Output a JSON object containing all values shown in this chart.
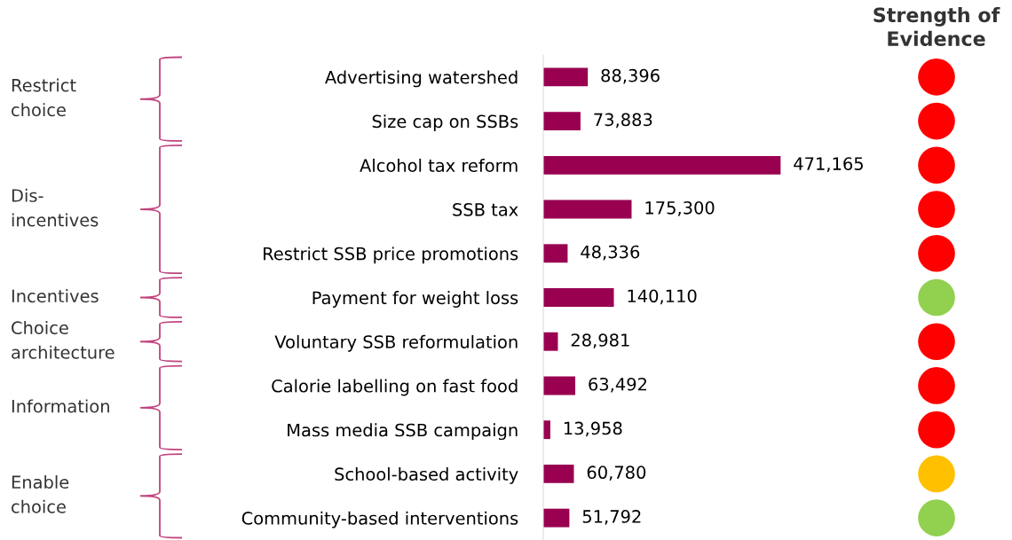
{
  "chart_data": [
    {
      "type": "bar",
      "orientation": "horizontal",
      "color": "#990050",
      "categories": [
        "Advertising watershed",
        "Size cap on SSBs",
        "Alcohol tax reform",
        "SSB tax",
        "Restrict SSB price promotions",
        "Payment for weight loss",
        "Voluntary SSB reformulation",
        "Calorie labelling on fast food",
        "Mass media SSB campaign",
        "School-based activity",
        "Community-based interventions"
      ],
      "values": [
        88396,
        73883,
        471165,
        175300,
        48336,
        140110,
        28981,
        63492,
        13958,
        60780,
        51792
      ],
      "value_labels": [
        "88,396",
        "73,883",
        "471,165",
        "175,300",
        "48,336",
        "140,110",
        "28,981",
        "63,492",
        "13,958",
        "60,780",
        "51,792"
      ],
      "annotations": [
        "Restrict\nchoice",
        "Dis-\nincentives",
        "Incentives",
        "Choice\narchitecture",
        "Information",
        "Enable\nchoice"
      ]
    },
    {
      "type": "other",
      "title": "Strength of\nEvidence",
      "categories": [
        null,
        null,
        null,
        null,
        null,
        null,
        null,
        null,
        null,
        null,
        null
      ],
      "colors": [
        "#ff0000",
        "#ff0000",
        "#ff0000",
        "#ff0000",
        "#ff0000",
        "#92d050",
        "#ff0000",
        "#ff0000",
        "#ff0000",
        "#ffc000",
        "#92d050"
      ]
    }
  ]
}
